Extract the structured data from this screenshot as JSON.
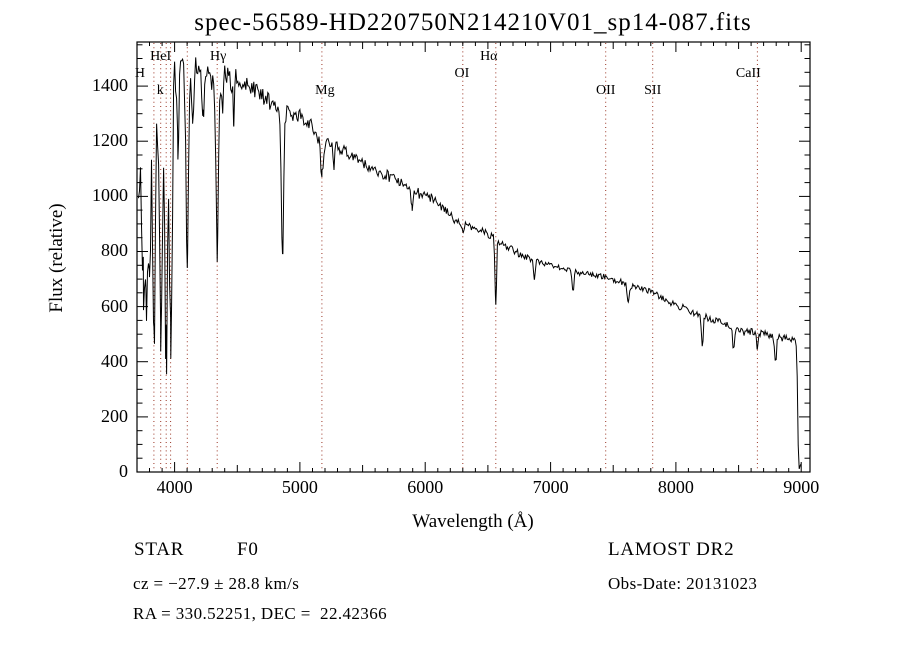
{
  "title": "spec-56589-HD220750N214210V01_sp14-087.fits",
  "chart_data": {
    "type": "line",
    "title": "spec-56589-HD220750N214210V01_sp14-087.fits",
    "xlabel": "Wavelength (Å)",
    "ylabel": "Flux (relative)",
    "xlim": [
      3700,
      9070
    ],
    "ylim": [
      0,
      1560
    ],
    "x_ticks": [
      4000,
      5000,
      6000,
      7000,
      8000,
      9000
    ],
    "y_ticks": [
      0,
      200,
      400,
      600,
      800,
      1000,
      1200,
      1400
    ],
    "x_minor_step": 100,
    "y_minor_step": 50,
    "grid": false,
    "legend": "none",
    "line_color": "#000000",
    "marker_color": "#993322",
    "line_markers": [
      {
        "label": "H",
        "wavelength": 3835,
        "row": 2,
        "dx": -14
      },
      {
        "label": "HeI",
        "wavelength": 3889,
        "row": 1,
        "dx": 0
      },
      {
        "label": "k",
        "wavelength": 3933,
        "row": 3,
        "dx": -6
      },
      {
        "label": "",
        "wavelength": 3968,
        "row": 0,
        "dx": 0
      },
      {
        "label": "",
        "wavelength": 4101,
        "row": 0,
        "dx": 0
      },
      {
        "label": "Hγ",
        "wavelength": 4340,
        "row": 1,
        "dx": 1
      },
      {
        "label": "Mg",
        "wavelength": 5175,
        "row": 3,
        "dx": 3
      },
      {
        "label": "OI",
        "wavelength": 6300,
        "row": 2,
        "dx": -1
      },
      {
        "label": "Hα",
        "wavelength": 6563,
        "row": 1,
        "dx": -7
      },
      {
        "label": "OII",
        "wavelength": 7440,
        "row": 3,
        "dx": 0
      },
      {
        "label": "SII",
        "wavelength": 7815,
        "row": 3,
        "dx": 0
      },
      {
        "label": "CaII",
        "wavelength": 8650,
        "row": 2,
        "dx": -9
      }
    ],
    "continuum": [
      [
        3712,
        950
      ],
      [
        3725,
        1000
      ],
      [
        3740,
        1090
      ],
      [
        3762,
        1150
      ],
      [
        3782,
        1230
      ],
      [
        3802,
        1270
      ],
      [
        3822,
        1300
      ],
      [
        3852,
        1330
      ],
      [
        3882,
        1370
      ],
      [
        3912,
        1400
      ],
      [
        3942,
        1420
      ],
      [
        3972,
        1430
      ],
      [
        4000,
        1450
      ],
      [
        4060,
        1460
      ],
      [
        4120,
        1455
      ],
      [
        4180,
        1470
      ],
      [
        4240,
        1450
      ],
      [
        4300,
        1430
      ],
      [
        4360,
        1420
      ],
      [
        4420,
        1445
      ],
      [
        4500,
        1415
      ],
      [
        4600,
        1405
      ],
      [
        4700,
        1365
      ],
      [
        4800,
        1325
      ],
      [
        4900,
        1300
      ],
      [
        5000,
        1285
      ],
      [
        5100,
        1255
      ],
      [
        5175,
        1205
      ],
      [
        5250,
        1195
      ],
      [
        5350,
        1165
      ],
      [
        5450,
        1140
      ],
      [
        5550,
        1105
      ],
      [
        5650,
        1085
      ],
      [
        5750,
        1065
      ],
      [
        5850,
        1048
      ],
      [
        5950,
        1012
      ],
      [
        6050,
        992
      ],
      [
        6150,
        955
      ],
      [
        6250,
        908
      ],
      [
        6350,
        892
      ],
      [
        6450,
        878
      ],
      [
        6550,
        848
      ],
      [
        6650,
        820
      ],
      [
        6760,
        790
      ],
      [
        6900,
        762
      ],
      [
        7080,
        740
      ],
      [
        7250,
        720
      ],
      [
        7400,
        712
      ],
      [
        7560,
        690
      ],
      [
        7700,
        668
      ],
      [
        7810,
        652
      ],
      [
        7930,
        622
      ],
      [
        8040,
        598
      ],
      [
        8190,
        572
      ],
      [
        8300,
        552
      ],
      [
        8400,
        535
      ],
      [
        8500,
        518
      ],
      [
        8600,
        508
      ],
      [
        8700,
        502
      ],
      [
        8800,
        492
      ],
      [
        8900,
        480
      ],
      [
        8955,
        472
      ],
      [
        8966,
        430
      ],
      [
        8974,
        120
      ],
      [
        8982,
        20
      ],
      [
        8990,
        15
      ],
      [
        9000,
        30
      ]
    ],
    "absorption_lines": [
      [
        3750,
        700,
        10
      ],
      [
        3771,
        640,
        9
      ],
      [
        3798,
        610,
        9
      ],
      [
        3835,
        430,
        11
      ],
      [
        3889,
        465,
        11
      ],
      [
        3933,
        430,
        9
      ],
      [
        3970,
        460,
        10
      ],
      [
        4026,
        1180,
        8
      ],
      [
        4101,
        790,
        10
      ],
      [
        4144,
        1250,
        7
      ],
      [
        4226,
        1280,
        7
      ],
      [
        4340,
        800,
        10
      ],
      [
        4383,
        1280,
        6
      ],
      [
        4471,
        1300,
        6
      ],
      [
        4861,
        788,
        9
      ],
      [
        5175,
        1095,
        14
      ],
      [
        5269,
        1100,
        7
      ],
      [
        5894,
        948,
        7
      ],
      [
        6280,
        905,
        6
      ],
      [
        6300,
        872,
        6
      ],
      [
        6563,
        600,
        6
      ],
      [
        6870,
        710,
        8
      ],
      [
        7180,
        660,
        7
      ],
      [
        7620,
        612,
        9
      ],
      [
        8210,
        452,
        7
      ],
      [
        8460,
        446,
        7
      ],
      [
        8545,
        500,
        6
      ],
      [
        8650,
        440,
        7
      ],
      [
        8795,
        398,
        7
      ]
    ],
    "noise_segments": [
      [
        3712,
        3995,
        165
      ],
      [
        3995,
        4500,
        52
      ],
      [
        4500,
        5180,
        30
      ],
      [
        5180,
        6100,
        20
      ],
      [
        6100,
        6900,
        14
      ],
      [
        6900,
        7800,
        10
      ],
      [
        7800,
        8955,
        13
      ],
      [
        8955,
        9000,
        8
      ]
    ]
  },
  "annotations": {
    "object_class": "STAR",
    "subclass": "F0",
    "survey": "LAMOST DR2",
    "cz_line": "cz = −27.9 ± 28.8 km/s",
    "obs_date_line": "Obs-Date: 20131023",
    "radec_line": "RA = 330.52251, DEC =  22.42366"
  }
}
